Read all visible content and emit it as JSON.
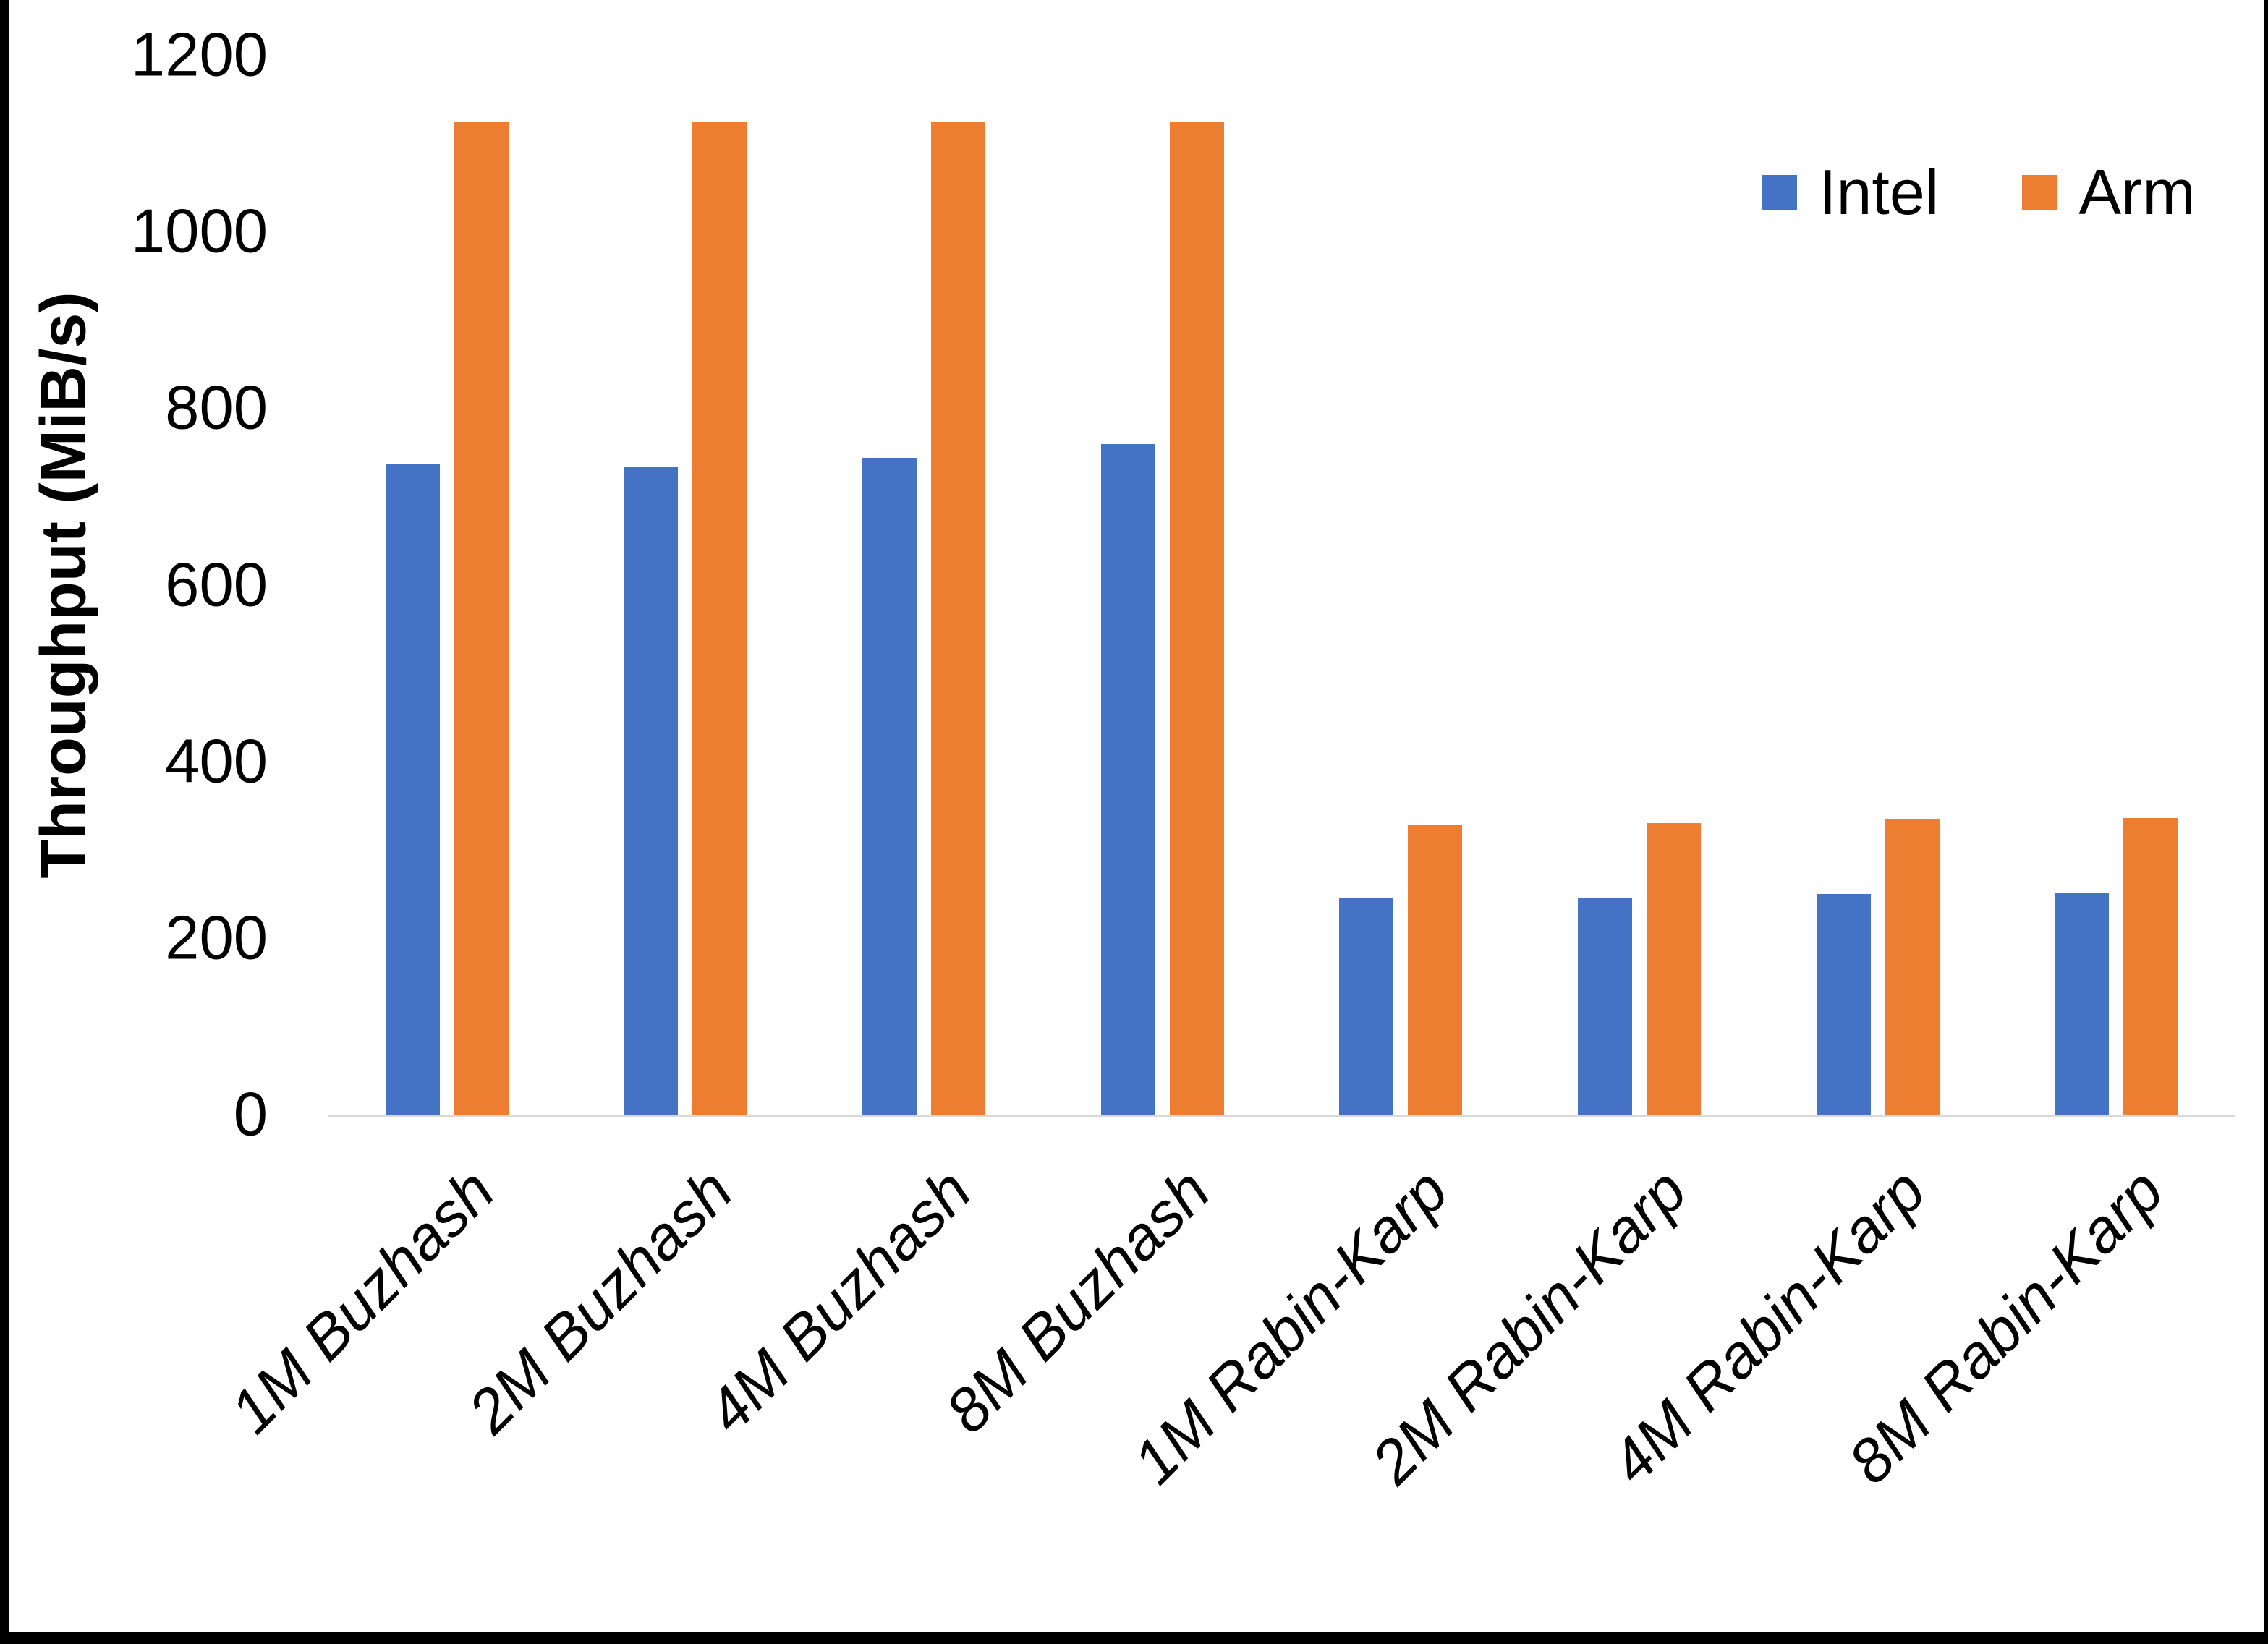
{
  "chart_data": {
    "type": "bar",
    "title": "",
    "ylabel": "Throughput (MiB/s)",
    "xlabel": "",
    "ylim": [
      0,
      1200
    ],
    "ytick_step": 200,
    "yticks": [
      "0",
      "200",
      "400",
      "600",
      "800",
      "1000",
      "1200"
    ],
    "grid": false,
    "legend_position": "top-right",
    "categories": [
      "1M Buzhash",
      "2M Buzhash",
      "4M Buzhash",
      "8M Buzhash",
      "1M Rabin-Karp",
      "2M Rabin-Karp",
      "4M Rabin-Karp",
      "8M Rabin-Karp"
    ],
    "series": [
      {
        "name": "Intel",
        "color": "#4472C4",
        "values": [
          736,
          734,
          744,
          759,
          246,
          246,
          250,
          251
        ]
      },
      {
        "name": "Arm",
        "color": "#ED7D31",
        "values": [
          1124,
          1124,
          1124,
          1124,
          328,
          330,
          334,
          336
        ]
      }
    ],
    "axis_line_color": "#d9d9d9",
    "text_color": "#000000"
  }
}
